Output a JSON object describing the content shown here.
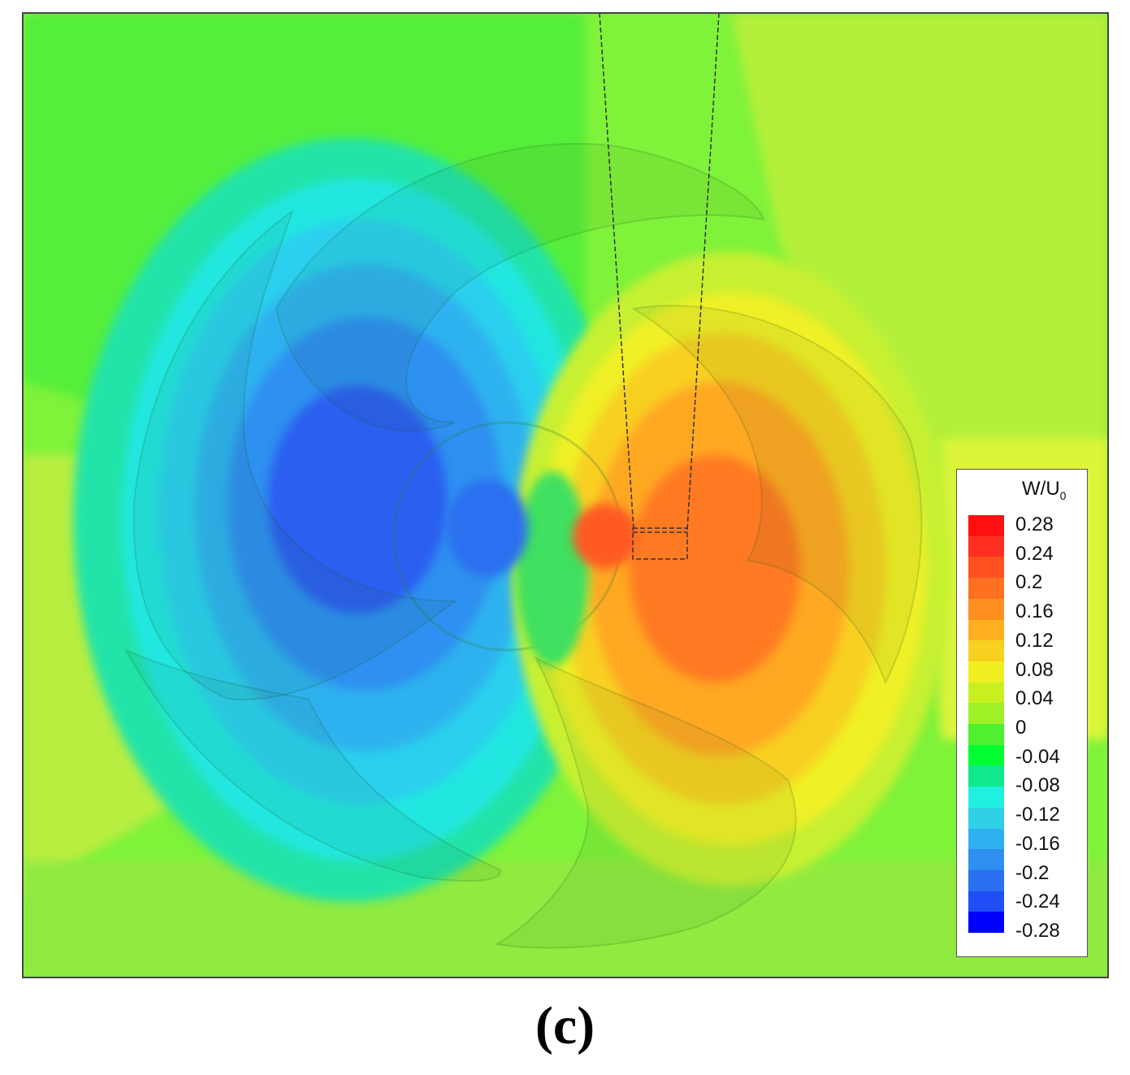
{
  "chart_data": {
    "type": "heatmap",
    "title": "",
    "xlabel": "",
    "ylabel": "",
    "colorbar": {
      "label_main": "W/U",
      "label_sub": "0",
      "levels": [
        -0.28,
        -0.24,
        -0.2,
        -0.16,
        -0.12,
        -0.08,
        -0.04,
        0,
        0.04,
        0.08,
        0.12,
        0.16,
        0.2,
        0.24,
        0.28
      ],
      "tick_labels": [
        "0.28",
        "0.24",
        "0.2",
        "0.16",
        "0.12",
        "0.08",
        "0.04",
        "0",
        "-0.04",
        "-0.08",
        "-0.12",
        "-0.16",
        "-0.2",
        "-0.24",
        "-0.28"
      ],
      "colors": [
        "#0000ff",
        "#1f4ff5",
        "#2a6ff0",
        "#2f8ff0",
        "#2fb0f0",
        "#2fd0e8",
        "#20f0e0",
        "#10e890",
        "#00ff30",
        "#50f030",
        "#a0f028",
        "#c8f020",
        "#f0f020",
        "#f8d020",
        "#ffb020",
        "#ff9020",
        "#ff7020",
        "#ff5020",
        "#ff3020",
        "#ff1010"
      ],
      "placement": "right"
    },
    "features": {
      "negative_extremum": -0.24,
      "positive_extremum": 0.24,
      "background_level": 0.04
    }
  },
  "panel_label": "(c)"
}
